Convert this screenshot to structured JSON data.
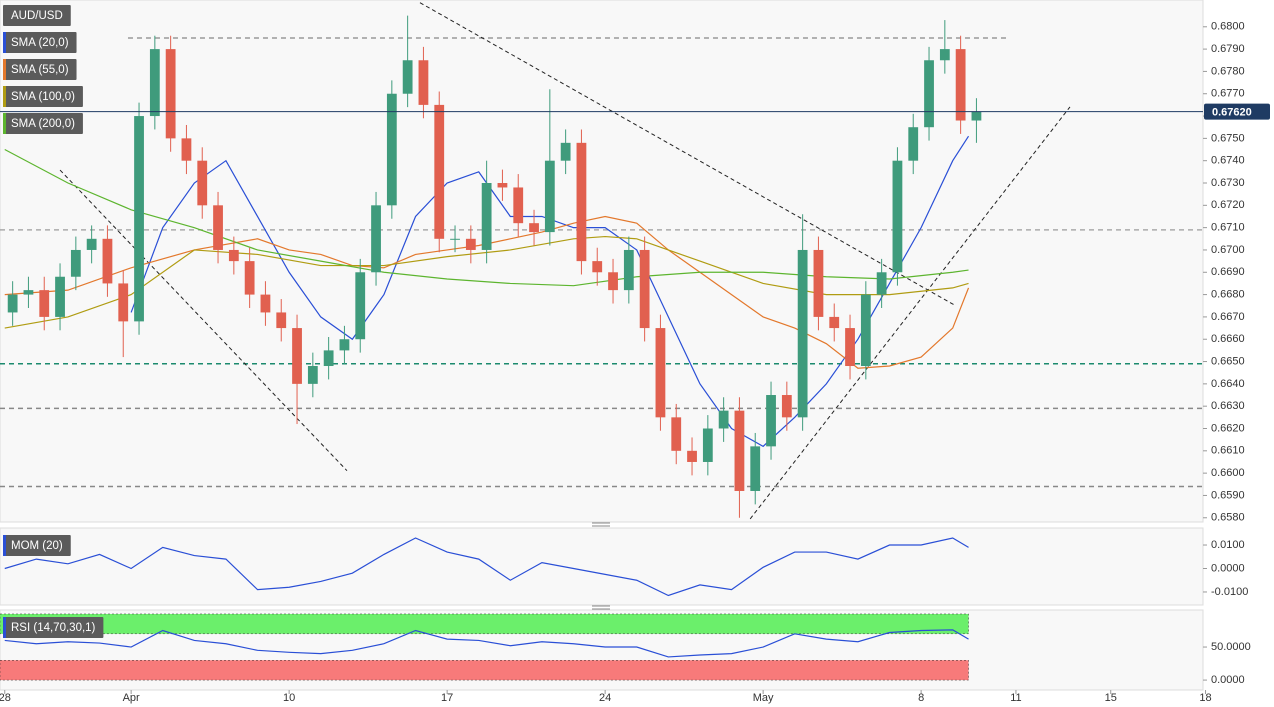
{
  "chart_data": [
    {
      "type": "candlestick",
      "title": "AUD/USD",
      "xlim": [
        -0.15,
        37.92
      ],
      "ylim": [
        0.6579,
        0.6812
      ],
      "up_color": "#3f9b7c",
      "down_color": "#e1604f",
      "x": [
        0.25,
        0.75,
        1.25,
        1.75,
        2.25,
        2.75,
        3.25,
        3.75,
        4.25,
        4.75,
        5.25,
        5.75,
        6.25,
        6.75,
        7.25,
        7.75,
        8.25,
        8.75,
        9.25,
        9.75,
        10.25,
        10.75,
        11.25,
        11.75,
        12.25,
        12.75,
        13.25,
        13.75,
        14.25,
        14.75,
        15.25,
        15.75,
        16.25,
        16.75,
        17.25,
        17.75,
        18.25,
        18.75,
        19.25,
        19.75,
        20.25,
        20.75,
        21.25,
        21.75,
        22.25,
        22.75,
        23.25,
        23.75,
        24.25,
        24.75,
        25.25,
        25.75,
        26.25,
        26.75,
        27.25,
        27.75,
        28.25,
        28.75,
        29.25,
        29.75,
        30.25,
        30.75
      ],
      "open": [
        0.6672,
        0.668,
        0.6682,
        0.667,
        0.6688,
        0.67,
        0.6705,
        0.6685,
        0.6668,
        0.676,
        0.679,
        0.675,
        0.674,
        0.672,
        0.67,
        0.6695,
        0.668,
        0.6672,
        0.6665,
        0.664,
        0.6648,
        0.6655,
        0.666,
        0.669,
        0.672,
        0.677,
        0.6785,
        0.6765,
        0.6705,
        0.6705,
        0.67,
        0.673,
        0.6728,
        0.6712,
        0.6708,
        0.674,
        0.6748,
        0.6695,
        0.669,
        0.6682,
        0.67,
        0.6665,
        0.6625,
        0.661,
        0.6605,
        0.662,
        0.6628,
        0.6592,
        0.6612,
        0.6635,
        0.6625,
        0.67,
        0.667,
        0.6665,
        0.6648,
        0.668,
        0.669,
        0.674,
        0.6755,
        0.6785,
        0.679,
        0.6758
      ],
      "high": [
        0.6686,
        0.6688,
        0.6688,
        0.6694,
        0.6706,
        0.6711,
        0.6711,
        0.6691,
        0.6766,
        0.6796,
        0.6796,
        0.6756,
        0.6746,
        0.6726,
        0.6706,
        0.6701,
        0.6686,
        0.6678,
        0.6671,
        0.6654,
        0.6661,
        0.6666,
        0.6696,
        0.6726,
        0.6776,
        0.6805,
        0.6791,
        0.6771,
        0.6711,
        0.6711,
        0.674,
        0.6736,
        0.6734,
        0.6718,
        0.6772,
        0.6754,
        0.6754,
        0.6701,
        0.6696,
        0.6706,
        0.6706,
        0.6671,
        0.6631,
        0.6616,
        0.6626,
        0.6634,
        0.6634,
        0.6618,
        0.6641,
        0.6641,
        0.6716,
        0.6706,
        0.6676,
        0.6671,
        0.6686,
        0.6696,
        0.6746,
        0.6761,
        0.6791,
        0.6803,
        0.6796,
        0.6768
      ],
      "low": [
        0.6666,
        0.6674,
        0.6664,
        0.6664,
        0.6682,
        0.6694,
        0.6679,
        0.6652,
        0.6662,
        0.6754,
        0.6744,
        0.6734,
        0.6714,
        0.6694,
        0.6689,
        0.6674,
        0.6666,
        0.6659,
        0.6622,
        0.6634,
        0.6642,
        0.6649,
        0.6654,
        0.6684,
        0.6714,
        0.6764,
        0.6759,
        0.6699,
        0.6699,
        0.6694,
        0.6694,
        0.6722,
        0.6706,
        0.6702,
        0.6702,
        0.6734,
        0.6689,
        0.6684,
        0.6676,
        0.6676,
        0.6659,
        0.6619,
        0.6604,
        0.6599,
        0.6599,
        0.6614,
        0.658,
        0.6586,
        0.6606,
        0.6619,
        0.6619,
        0.6664,
        0.6659,
        0.6642,
        0.6642,
        0.6674,
        0.6684,
        0.6734,
        0.6749,
        0.6779,
        0.6752,
        0.6748
      ],
      "close": [
        0.668,
        0.6682,
        0.667,
        0.6688,
        0.67,
        0.6705,
        0.6685,
        0.6668,
        0.676,
        0.679,
        0.675,
        0.674,
        0.672,
        0.67,
        0.6695,
        0.668,
        0.6672,
        0.6665,
        0.664,
        0.6648,
        0.6655,
        0.666,
        0.669,
        0.672,
        0.677,
        0.6785,
        0.6765,
        0.6705,
        0.6705,
        0.67,
        0.673,
        0.6728,
        0.6712,
        0.6708,
        0.674,
        0.6748,
        0.6695,
        0.669,
        0.6682,
        0.67,
        0.6665,
        0.6625,
        0.661,
        0.6605,
        0.662,
        0.6628,
        0.6592,
        0.6612,
        0.6635,
        0.6625,
        0.67,
        0.667,
        0.6665,
        0.6648,
        0.668,
        0.669,
        0.674,
        0.6755,
        0.6785,
        0.679,
        0.6758,
        0.6762
      ],
      "series": [
        {
          "name": "SMA (20,0)",
          "color": "#2a4fd6",
          "x": [
            4,
            5,
            6,
            7,
            8,
            9,
            10,
            11,
            12,
            13,
            14,
            15,
            16,
            17,
            18,
            19,
            20,
            21,
            22,
            23,
            24,
            25,
            26,
            27,
            28,
            29,
            30,
            30.5
          ],
          "values": [
            0.6672,
            0.671,
            0.673,
            0.674,
            0.6715,
            0.669,
            0.667,
            0.666,
            0.668,
            0.6715,
            0.673,
            0.6735,
            0.6715,
            0.6715,
            0.671,
            0.671,
            0.67,
            0.667,
            0.664,
            0.662,
            0.6612,
            0.6625,
            0.664,
            0.666,
            0.6685,
            0.671,
            0.674,
            0.6751
          ]
        },
        {
          "name": "SMA (55,0)",
          "color": "#e3782c",
          "x": [
            0,
            2,
            4,
            6,
            8,
            9,
            10,
            11,
            12,
            13,
            14,
            15,
            16,
            17,
            18,
            19,
            20,
            21,
            22,
            23,
            24,
            25,
            26,
            27,
            28,
            29,
            30,
            30.5
          ],
          "values": [
            0.668,
            0.6682,
            0.6692,
            0.67,
            0.6705,
            0.67,
            0.6698,
            0.6693,
            0.6692,
            0.6698,
            0.67,
            0.6702,
            0.6705,
            0.6708,
            0.6712,
            0.6715,
            0.6712,
            0.67,
            0.669,
            0.668,
            0.667,
            0.6665,
            0.6658,
            0.6647,
            0.6648,
            0.6652,
            0.6665,
            0.6683
          ]
        },
        {
          "name": "SMA (100,0)",
          "color": "#b09c12",
          "x": [
            0,
            2,
            4,
            6,
            8,
            10,
            12,
            14,
            16,
            18,
            19,
            20,
            22,
            24,
            26,
            28,
            30,
            30.5
          ],
          "values": [
            0.6665,
            0.667,
            0.668,
            0.67,
            0.6698,
            0.6693,
            0.6693,
            0.6697,
            0.67,
            0.6705,
            0.6706,
            0.6705,
            0.6695,
            0.6685,
            0.668,
            0.668,
            0.6683,
            0.6685
          ]
        },
        {
          "name": "SMA (200,0)",
          "color": "#5db52f",
          "x": [
            0,
            2,
            4,
            6,
            8,
            10,
            12,
            14,
            16,
            18,
            20,
            22,
            24,
            26,
            28,
            30,
            30.5
          ],
          "values": [
            0.6745,
            0.673,
            0.6718,
            0.671,
            0.67,
            0.6695,
            0.669,
            0.6687,
            0.6685,
            0.6684,
            0.6688,
            0.669,
            0.669,
            0.6688,
            0.6687,
            0.669,
            0.6691
          ]
        }
      ],
      "levels": [
        {
          "value": 0.6795,
          "color": "#999999",
          "x": [
            3.9,
            31.8
          ]
        },
        {
          "value": 0.6709,
          "color": "#aaaaaa",
          "x": [
            -0.15,
            37.92
          ]
        },
        {
          "value": 0.6649,
          "color": "#1c8a6e",
          "x": [
            -0.15,
            37.92
          ]
        },
        {
          "value": 0.6629,
          "color": "#888888",
          "x": [
            -0.15,
            37.92
          ]
        },
        {
          "value": 0.6594,
          "color": "#888888",
          "x": [
            -0.15,
            37.92
          ]
        }
      ],
      "trendlines": [
        [
          1.75,
          0.67358,
          10.83,
          0.66011
        ],
        [
          13.14,
          0.68108,
          30.07,
          0.66752
        ],
        [
          23.59,
          0.65795,
          33.71,
          0.67641
        ]
      ],
      "last_price": {
        "value": 0.6762,
        "label": "0.67620"
      },
      "yticks": [
        {
          "value": 0.658,
          "label": "0.6580"
        },
        {
          "value": 0.659,
          "label": "0.6590"
        },
        {
          "value": 0.66,
          "label": "0.6600"
        },
        {
          "value": 0.661,
          "label": "0.6610"
        },
        {
          "value": 0.662,
          "label": "0.6620"
        },
        {
          "value": 0.663,
          "label": "0.6630"
        },
        {
          "value": 0.664,
          "label": "0.6640"
        },
        {
          "value": 0.665,
          "label": "0.6650"
        },
        {
          "value": 0.666,
          "label": "0.6660"
        },
        {
          "value": 0.667,
          "label": "0.6670"
        },
        {
          "value": 0.668,
          "label": "0.6680"
        },
        {
          "value": 0.669,
          "label": "0.6690"
        },
        {
          "value": 0.67,
          "label": "0.6700"
        },
        {
          "value": 0.671,
          "label": "0.6710"
        },
        {
          "value": 0.672,
          "label": "0.6720"
        },
        {
          "value": 0.673,
          "label": "0.6730"
        },
        {
          "value": 0.674,
          "label": "0.6740"
        },
        {
          "value": 0.675,
          "label": "0.6750"
        },
        {
          "value": 0.676,
          "label": "0.6760"
        },
        {
          "value": 0.677,
          "label": "0.6770"
        },
        {
          "value": 0.678,
          "label": "0.6780"
        },
        {
          "value": 0.679,
          "label": "0.6790"
        },
        {
          "value": 0.68,
          "label": "0.6800"
        }
      ]
    },
    {
      "type": "line",
      "xlim": [
        -0.15,
        37.92
      ],
      "ylim": [
        -0.0147,
        0.0164
      ],
      "series": [
        {
          "name": "MOM (20)",
          "color": "#2a4fd6",
          "x": [
            0,
            1,
            2,
            3,
            4,
            5,
            6,
            7,
            8,
            9,
            10,
            11,
            12,
            13,
            14,
            15,
            16,
            17,
            18,
            19,
            20,
            21,
            22,
            23,
            24,
            25,
            26,
            27,
            28,
            29,
            30,
            30.5
          ],
          "values": [
            0,
            0.004,
            0.002,
            0.006,
            0,
            0.009,
            0.0055,
            0.004,
            -0.009,
            -0.008,
            -0.0055,
            -0.002,
            0.006,
            0.013,
            0.007,
            0.004,
            -0.005,
            0.0025,
            0,
            -0.0025,
            -0.005,
            -0.0115,
            -0.007,
            -0.009,
            0.0005,
            0.007,
            0.007,
            0.004,
            0.01,
            0.01,
            0.013,
            0.009
          ]
        }
      ],
      "yticks": [
        {
          "value": 0.01,
          "label": "0.0100"
        },
        {
          "value": 0,
          "label": "0.0000"
        },
        {
          "value": -0.01,
          "label": "-0.0100"
        }
      ]
    },
    {
      "type": "line",
      "xlim": [
        -0.15,
        37.92
      ],
      "ylim": [
        -15,
        103
      ],
      "bands": [
        {
          "from": 70,
          "to": 100,
          "color": "#6bef6b"
        },
        {
          "from": 0,
          "to": 30,
          "color": "#f77a7a"
        }
      ],
      "series": [
        {
          "name": "RSI (14,70,30,1)",
          "color": "#2a4fd6",
          "x": [
            0,
            1,
            2,
            3,
            4,
            5,
            6,
            7,
            8,
            9,
            10,
            11,
            12,
            13,
            14,
            15,
            16,
            17,
            18,
            19,
            20,
            21,
            22,
            23,
            24,
            25,
            26,
            27,
            28,
            29,
            30,
            30.5
          ],
          "values": [
            60,
            55,
            58,
            56,
            50,
            75,
            60,
            55,
            45,
            42,
            40,
            45,
            55,
            75,
            62,
            60,
            52,
            58,
            55,
            50,
            50,
            35,
            38,
            40,
            50,
            70,
            62,
            58,
            72,
            75,
            76,
            62
          ]
        }
      ],
      "yticks": [
        {
          "value": 50,
          "label": "50.0000"
        },
        {
          "value": 0,
          "label": "0.0000"
        }
      ],
      "xticks": [
        {
          "value": 0,
          "label": "28"
        },
        {
          "value": 4,
          "label": "Apr"
        },
        {
          "value": 9,
          "label": "10"
        },
        {
          "value": 14,
          "label": "17"
        },
        {
          "value": 19,
          "label": "24"
        },
        {
          "value": 24,
          "label": "May"
        },
        {
          "value": 29,
          "label": "8"
        },
        {
          "value": 32,
          "label": "11"
        },
        {
          "value": 35,
          "label": "15"
        },
        {
          "value": 38,
          "label": "18"
        }
      ]
    }
  ]
}
